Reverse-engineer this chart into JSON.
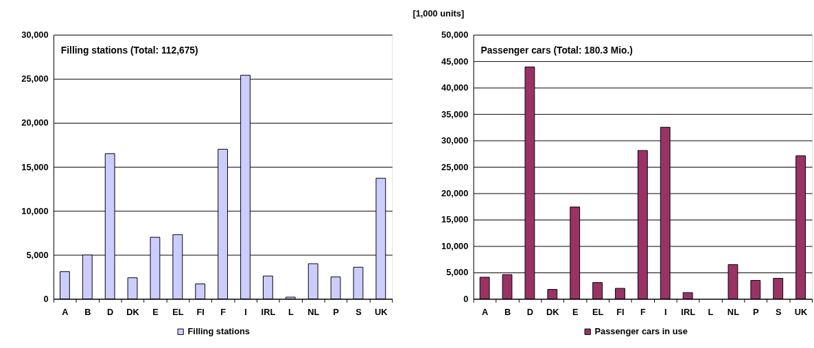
{
  "chart_data": [
    {
      "type": "bar",
      "title": "Filling stations (Total: 112,675)",
      "categories": [
        "A",
        "B",
        "D",
        "DK",
        "E",
        "EL",
        "FI",
        "F",
        "I",
        "IRL",
        "L",
        "NL",
        "P",
        "S",
        "UK"
      ],
      "series": [
        {
          "name": "Filling stations",
          "color": "#ccccff",
          "values": [
            3100,
            5000,
            16500,
            2400,
            7000,
            7300,
            1700,
            17000,
            25400,
            2600,
            200,
            4000,
            2500,
            3600,
            13700
          ]
        }
      ],
      "ylim": [
        0,
        30000
      ],
      "yticks": [
        0,
        {
          "value": 5000,
          "label": "5,000"
        },
        {
          "value": 10000,
          "label": "10,000"
        },
        {
          "value": 15000,
          "label": "15,000"
        },
        {
          "value": 20000,
          "label": "20,000"
        },
        {
          "value": 25000,
          "label": "25,000"
        },
        {
          "value": 30000,
          "label": "30,000"
        }
      ],
      "grid": "y",
      "legend": "bottom"
    },
    {
      "type": "bar",
      "title": "Passenger cars (Total: 180.3 Mio.)",
      "ylabel": "[1,000 units]",
      "categories": [
        "A",
        "B",
        "D",
        "DK",
        "E",
        "EL",
        "FI",
        "F",
        "I",
        "IRL",
        "L",
        "NL",
        "P",
        "S",
        "UK"
      ],
      "series": [
        {
          "name": "Passenger cars in use",
          "color": "#993366",
          "values": [
            4100,
            4600,
            43900,
            1800,
            17400,
            3100,
            2000,
            28100,
            32500,
            1200,
            null,
            6500,
            3500,
            3900,
            27100
          ]
        }
      ],
      "ylim": [
        0,
        50000
      ],
      "yticks": [
        0,
        {
          "value": 5000,
          "label": "5,000"
        },
        {
          "value": 10000,
          "label": "10,000"
        },
        {
          "value": 15000,
          "label": "15,000"
        },
        {
          "value": 20000,
          "label": "20,000"
        },
        {
          "value": 25000,
          "label": "25,000"
        },
        {
          "value": 30000,
          "label": "30,000"
        },
        {
          "value": 35000,
          "label": "35,000"
        },
        {
          "value": 40000,
          "label": "40,000"
        },
        {
          "value": 45000,
          "label": "45,000"
        },
        {
          "value": 50000,
          "label": "50,000"
        }
      ],
      "grid": "y",
      "legend": "bottom"
    }
  ]
}
